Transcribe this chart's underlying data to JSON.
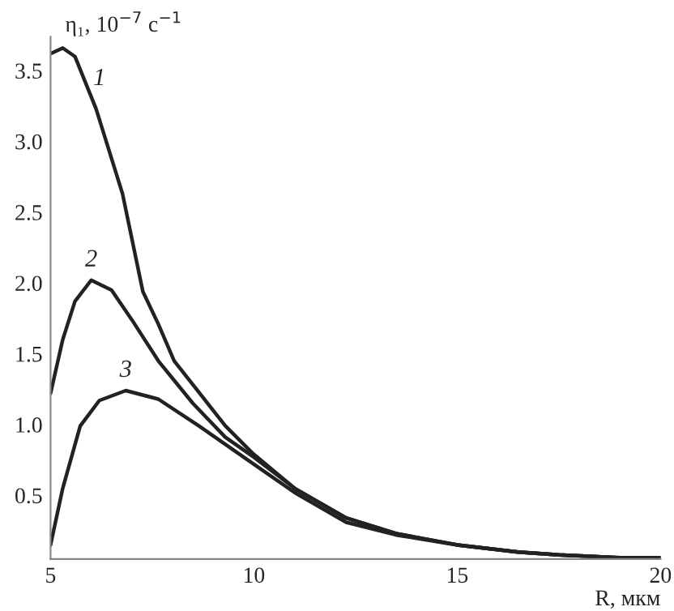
{
  "chart_data": {
    "type": "line",
    "xlabel": "R, мкм",
    "ylabel": "η₁, 10$^{−7}$ с$^{−1}$",
    "xlim": [
      5,
      20
    ],
    "ylim": [
      0.05,
      3.74
    ],
    "xticks": [
      5,
      10,
      15,
      20
    ],
    "yticks": [
      0.5,
      {
        "value": 1,
        "label": "1.0"
      },
      1.5,
      {
        "value": 2,
        "label": "2.0"
      },
      2.5,
      {
        "value": 3,
        "label": "3.0"
      },
      3.5
    ],
    "grid": false,
    "legend": false,
    "marker": "none",
    "line_style": "solid",
    "series": [
      {
        "color": "#222222",
        "x": [
          5,
          5.3,
          5.6,
          6.12,
          6.77,
          7.27,
          7.65,
          8.04,
          9.3,
          9.96,
          11,
          12.27,
          13.5,
          15,
          16.5,
          17.5,
          19,
          20
        ],
        "values": [
          3.62,
          3.66,
          3.6,
          3.23,
          2.63,
          1.94,
          1.71,
          1.45,
          0.99,
          0.8,
          0.55,
          0.34,
          0.23,
          0.15,
          0.1,
          0.08,
          0.06,
          0.06
        ]
      },
      {
        "color": "#222222",
        "x": [
          5,
          5.3,
          5.6,
          6.0,
          6.5,
          7.0,
          7.65,
          8.5,
          9.3,
          10,
          11,
          12.27,
          13.5,
          15,
          16.5,
          17.5,
          19,
          20
        ],
        "values": [
          1.22,
          1.6,
          1.87,
          2.02,
          1.95,
          1.74,
          1.45,
          1.15,
          0.91,
          0.77,
          0.55,
          0.34,
          0.23,
          0.15,
          0.1,
          0.08,
          0.06,
          0.06
        ]
      },
      {
        "color": "#222222",
        "x": [
          5,
          5.3,
          5.73,
          6.2,
          6.85,
          7.65,
          8.65,
          10,
          11,
          12.27,
          13.5,
          15,
          16.5,
          17.5,
          19,
          20
        ],
        "values": [
          0.15,
          0.55,
          0.99,
          1.17,
          1.24,
          1.18,
          0.99,
          0.72,
          0.52,
          0.31,
          0.22,
          0.15,
          0.1,
          0.08,
          0.06,
          0.06
        ]
      }
    ],
    "annotations": [
      "1",
      "2",
      "3"
    ]
  }
}
